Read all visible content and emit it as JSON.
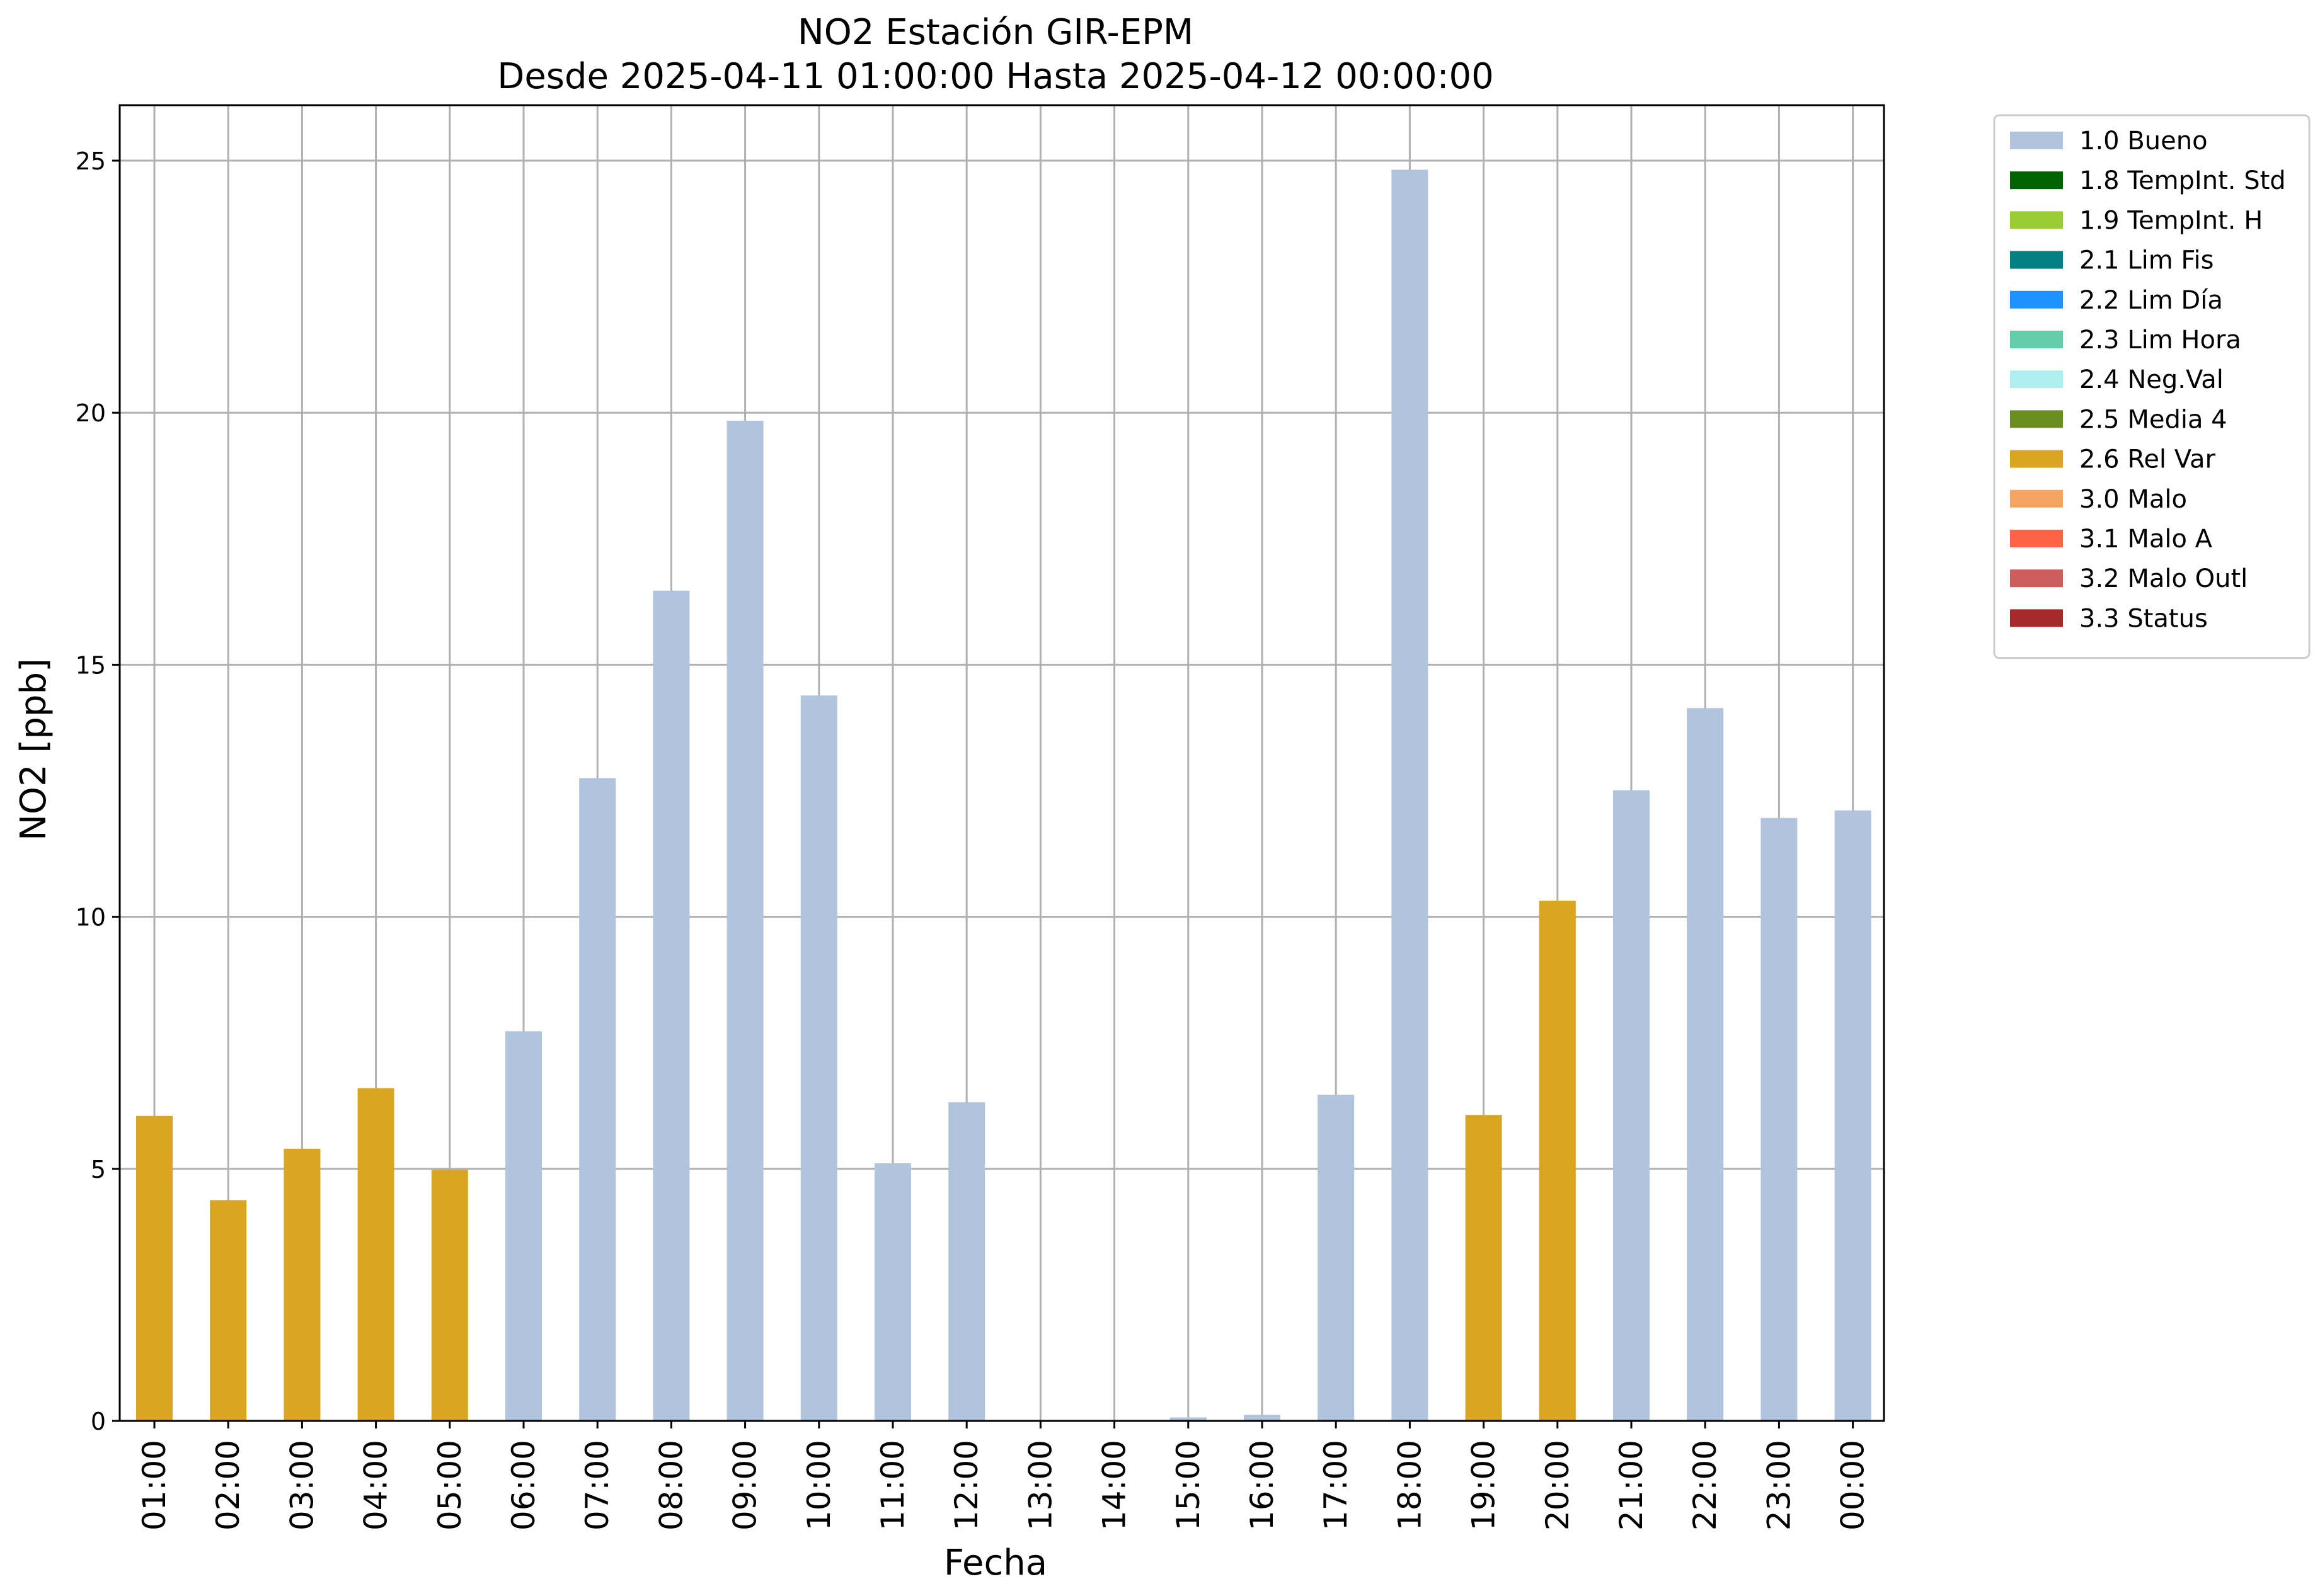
{
  "chart_data": {
    "type": "bar",
    "title": "NO2 Estación GIR-EPM",
    "subtitle": "Desde 2025-04-11 01:00:00 Hasta 2025-04-12 00:00:00",
    "xlabel": "Fecha",
    "ylabel": "NO2 [ppb]",
    "ylim": [
      0,
      26.1
    ],
    "yticks": [
      0,
      5,
      10,
      15,
      20,
      25
    ],
    "grid": true,
    "legend_position": "outside-top-right",
    "categories": [
      "01:00",
      "02:00",
      "03:00",
      "04:00",
      "05:00",
      "06:00",
      "07:00",
      "08:00",
      "09:00",
      "10:00",
      "11:00",
      "12:00",
      "13:00",
      "14:00",
      "15:00",
      "16:00",
      "17:00",
      "18:00",
      "19:00",
      "20:00",
      "21:00",
      "22:00",
      "23:00",
      "00:00"
    ],
    "values": [
      6.05,
      4.38,
      5.4,
      6.6,
      4.98,
      7.73,
      12.75,
      16.47,
      19.84,
      14.39,
      5.11,
      6.32,
      0,
      0,
      0.07,
      0.12,
      6.47,
      24.82,
      6.07,
      10.32,
      12.51,
      14.14,
      11.96,
      12.11
    ],
    "flags": [
      "2.6",
      "2.6",
      "2.6",
      "2.6",
      "2.6",
      "1.0",
      "1.0",
      "1.0",
      "1.0",
      "1.0",
      "1.0",
      "1.0",
      "1.0",
      "1.0",
      "1.0",
      "1.0",
      "1.0",
      "1.0",
      "2.6",
      "2.6",
      "1.0",
      "1.0",
      "1.0",
      "1.0"
    ],
    "legend": [
      {
        "code": "1.0",
        "label": "1.0 Bueno",
        "color": "#b0c4de"
      },
      {
        "code": "1.8",
        "label": "1.8 TempInt. Std",
        "color": "#006400"
      },
      {
        "code": "1.9",
        "label": "1.9 TempInt. H",
        "color": "#9acd32"
      },
      {
        "code": "2.1",
        "label": "2.1 Lim Fis",
        "color": "#008080"
      },
      {
        "code": "2.2",
        "label": "2.2 Lim Día",
        "color": "#1e90ff"
      },
      {
        "code": "2.3",
        "label": "2.3 Lim Hora",
        "color": "#66cdaa"
      },
      {
        "code": "2.4",
        "label": "2.4 Neg.Val",
        "color": "#afeeee"
      },
      {
        "code": "2.5",
        "label": "2.5 Media 4",
        "color": "#6b8e23"
      },
      {
        "code": "2.6",
        "label": "2.6 Rel Var",
        "color": "#daa520"
      },
      {
        "code": "3.0",
        "label": "3.0 Malo",
        "color": "#f4a460"
      },
      {
        "code": "3.1",
        "label": "3.1 Malo A",
        "color": "#ff6347"
      },
      {
        "code": "3.2",
        "label": "3.2 Malo Outl",
        "color": "#cd5c5c"
      },
      {
        "code": "3.3",
        "label": "3.3 Status",
        "color": "#a52a2a"
      }
    ]
  }
}
